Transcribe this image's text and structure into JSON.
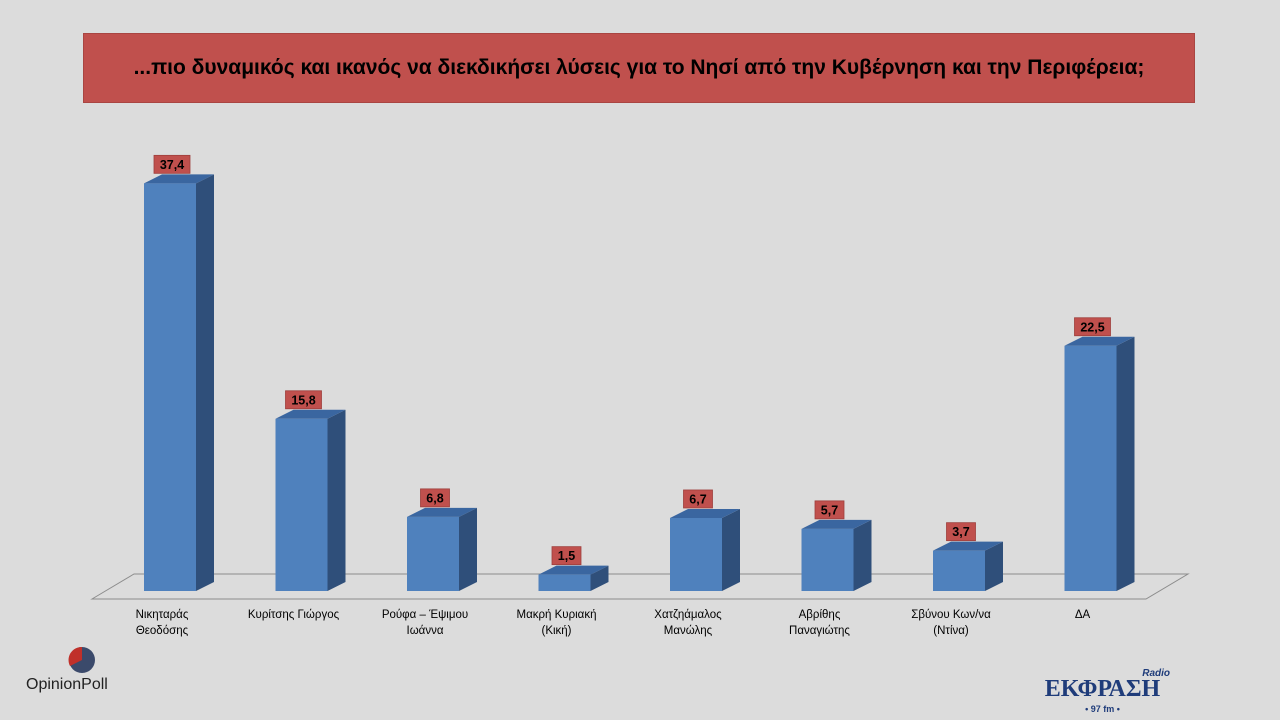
{
  "title": "...πιο δυναμικός και ικανός να διεκδικήσει λύσεις για το Νησί από την Κυβέρνηση και την Περιφέρεια;",
  "chart_data": {
    "type": "bar",
    "categories": [
      [
        "Νικηταράς",
        "Θεοδόσης"
      ],
      [
        "Κυρίτσης Γιώργος"
      ],
      [
        "Ρούφα – Έψιμου",
        "Ιωάννα"
      ],
      [
        "Μακρή Κυριακή",
        "(Κική)"
      ],
      [
        "Χατζηάμαλος",
        "Μανώλης"
      ],
      [
        "Αβρίθης",
        "Παναγιώτης"
      ],
      [
        "Σβύνου Κων/να",
        "(Ντίνα)"
      ],
      [
        "ΔΑ"
      ]
    ],
    "values": [
      37.4,
      15.8,
      6.8,
      1.5,
      6.7,
      5.7,
      3.7,
      22.5
    ],
    "value_labels": [
      "37,4",
      "15,8",
      "6,8",
      "1,5",
      "6,7",
      "5,7",
      "3,7",
      "22,5"
    ],
    "ylim": [
      0,
      40
    ],
    "grid": false,
    "colors": {
      "bar_front": "#4f81bd",
      "bar_side": "#2f4f7a",
      "bar_top": "#3a66a0",
      "label_bg": "#c0504d"
    }
  },
  "logos": {
    "left_text": "OpinionPoll",
    "right_radio": "Radio",
    "right_brand": "ΕΚΦΡΑΣΗ",
    "right_freq": "• 97 fm •"
  }
}
